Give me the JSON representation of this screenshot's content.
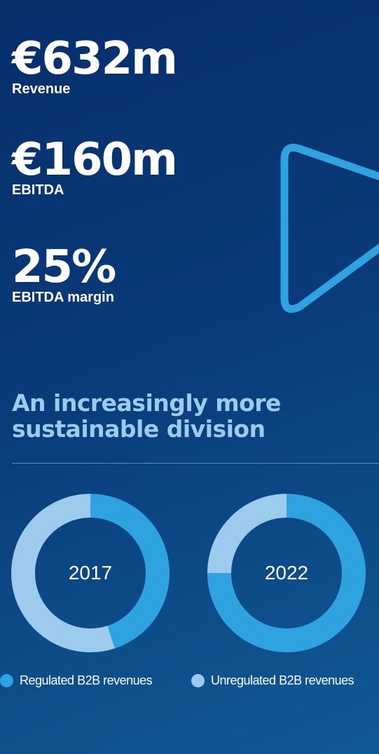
{
  "stats": [
    {
      "value": "€632m",
      "label": "Revenue"
    },
    {
      "value": "€160m",
      "label": "EBITDA"
    },
    {
      "value": "25%",
      "label": "EBITDA margin"
    }
  ],
  "headline": "An increasingly more sustainable division",
  "colors": {
    "background": "#0a3a7a",
    "regulated": "#2ea3e0",
    "unregulated": "#9ccbee",
    "play_outline": "#2ea3e0",
    "headline": "#9ccbee"
  },
  "icons": [
    "play-icon"
  ],
  "chart_data": [
    {
      "type": "pie",
      "center_label": "2017",
      "categories": [
        "Regulated B2B revenues",
        "Unregulated B2B revenues"
      ],
      "values": [
        45,
        55
      ]
    },
    {
      "type": "pie",
      "center_label": "2022",
      "categories": [
        "Regulated B2B revenues",
        "Unregulated B2B revenues"
      ],
      "values": [
        75,
        25
      ]
    }
  ],
  "legend": [
    {
      "label": "Regulated B2B revenues"
    },
    {
      "label": "Unregulated B2B revenues"
    }
  ]
}
